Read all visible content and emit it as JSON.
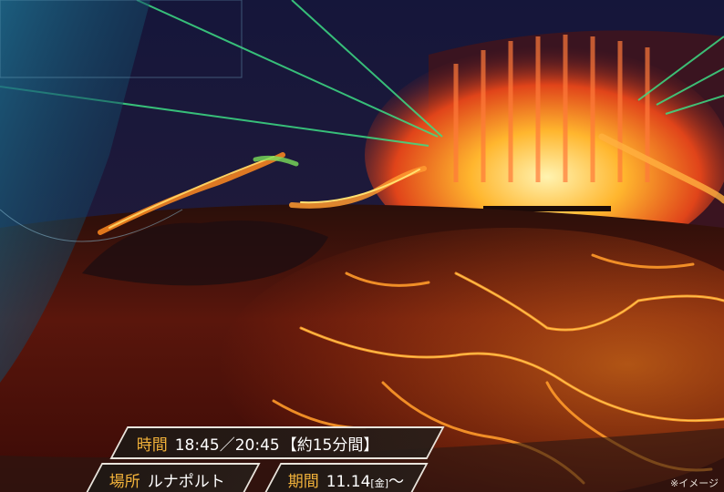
{
  "info": {
    "time_label": "時間",
    "time_value": "18:45／20:45",
    "duration": "【約15分間】",
    "place_label": "場所",
    "place_value": "ルナポルト",
    "period_label": "期間",
    "period_date": "11.14",
    "period_weekday": "[金]",
    "period_suffix": "〜"
  },
  "note": "※イメージ",
  "colors": {
    "label_gold": "#f2b23a",
    "band_border": "#e8e4dc",
    "night_sky": "#1c1a3a",
    "lava_glow": "#ff7a1a",
    "laser_green": "#3ddc84"
  }
}
